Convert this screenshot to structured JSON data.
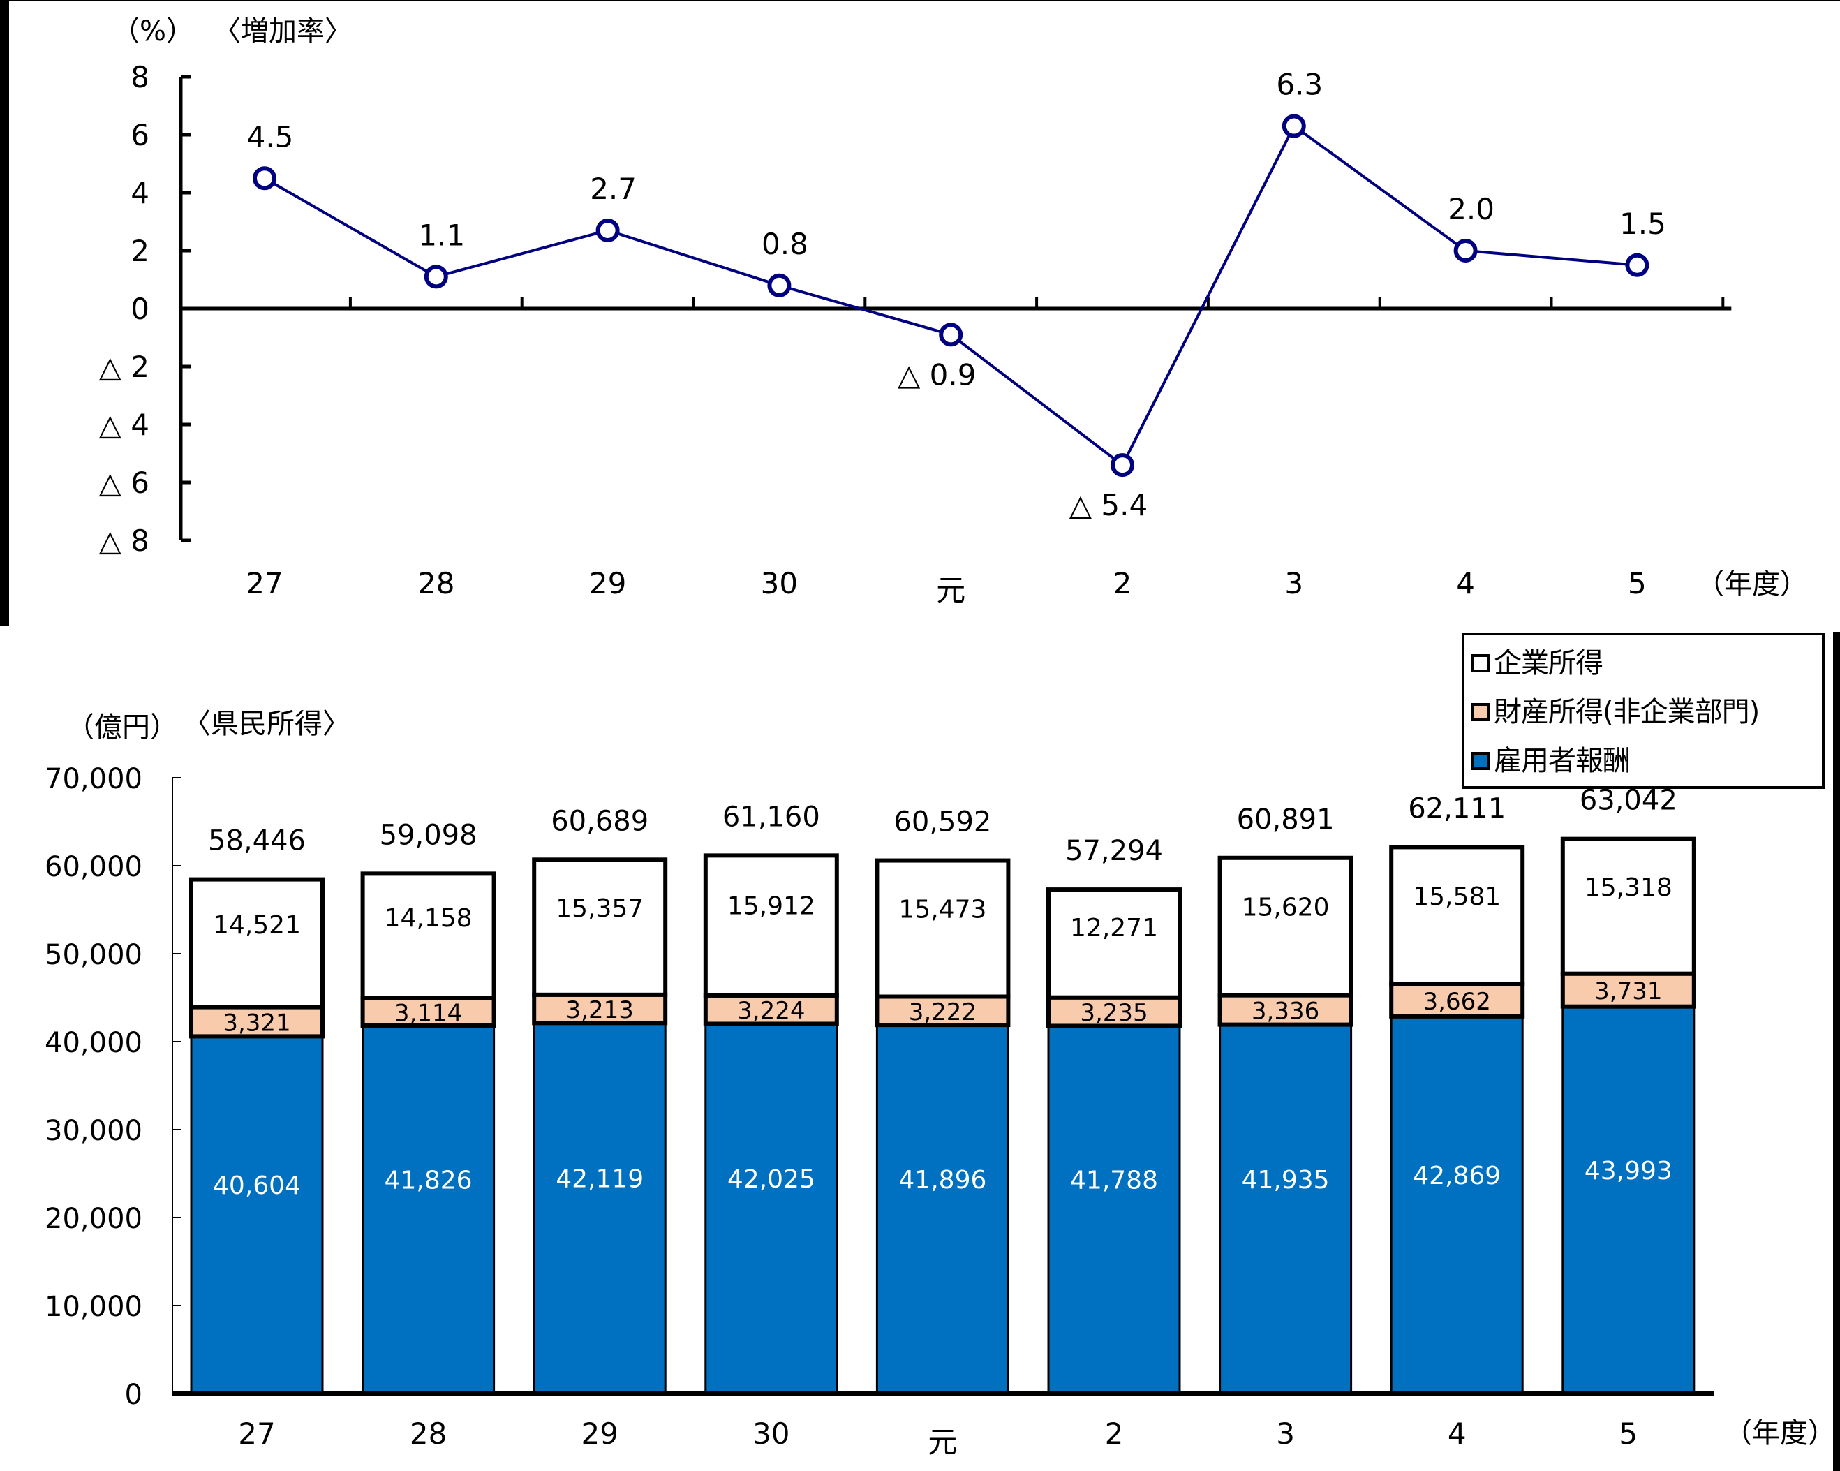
{
  "chart_data": [
    {
      "type": "line",
      "title": "〈増加率〉",
      "ylabel": "（%）",
      "xlabel": "（年度）",
      "categories": [
        "27",
        "28",
        "29",
        "30",
        "元",
        "2",
        "3",
        "4",
        "5"
      ],
      "values": [
        4.5,
        1.1,
        2.7,
        0.8,
        -0.9,
        -5.4,
        6.3,
        2.0,
        1.5
      ],
      "value_labels": [
        "4.5",
        "1.1",
        "2.7",
        "0.8",
        "△ 0.9",
        "△ 5.4",
        "6.3",
        "2.0",
        "1.5"
      ],
      "ylim": [
        -8,
        8
      ],
      "yticks": [
        8,
        6,
        4,
        2,
        0,
        -2,
        -4,
        -6,
        -8
      ],
      "ytick_labels": [
        "8",
        "6",
        "4",
        "2",
        "0",
        "△ 2",
        "△ 4",
        "△ 6",
        "△ 8"
      ],
      "series_color": "#000080",
      "marker": "open-circle",
      "grid": false
    },
    {
      "type": "bar",
      "stacked": true,
      "title": "〈県民所得〉",
      "ylabel": "（億円）",
      "xlabel": "（年度）",
      "categories": [
        "27",
        "28",
        "29",
        "30",
        "元",
        "2",
        "3",
        "4",
        "5"
      ],
      "series": [
        {
          "name": "雇用者報酬",
          "color": "#0070C0",
          "values": [
            40604,
            41826,
            42119,
            42025,
            41896,
            41788,
            41935,
            42869,
            43993
          ]
        },
        {
          "name": "財産所得(非企業部門)",
          "color": "#F8CBAD",
          "values": [
            3321,
            3114,
            3213,
            3224,
            3222,
            3235,
            3336,
            3662,
            3731
          ]
        },
        {
          "name": "企業所得",
          "color": "#FFFFFF",
          "values": [
            14521,
            14158,
            15357,
            15912,
            15473,
            12271,
            15620,
            15581,
            15318
          ]
        }
      ],
      "totals": [
        58446,
        59098,
        60689,
        61160,
        60592,
        57294,
        60891,
        62111,
        63042
      ],
      "ylim": [
        0,
        70000
      ],
      "yticks": [
        0,
        10000,
        20000,
        30000,
        40000,
        50000,
        60000,
        70000
      ],
      "ytick_labels": [
        "0",
        "10,000",
        "20,000",
        "30,000",
        "40,000",
        "50,000",
        "60,000",
        "70,000"
      ],
      "legend_position": "top-right",
      "legend": [
        "企業所得",
        "財産所得(非企業部門)",
        "雇用者報酬"
      ],
      "grid": false
    }
  ],
  "line_chart": {
    "unit_label": "（%）",
    "title": "〈増加率〉",
    "x_unit": "（年度）"
  },
  "bar_chart": {
    "unit_label": "（億円）",
    "title": "〈県民所得〉",
    "x_unit": "（年度）",
    "legend": {
      "items": [
        {
          "label": "企業所得",
          "color": "#FFFFFF"
        },
        {
          "label": "財産所得(非企業部門)",
          "color": "#F8CBAD"
        },
        {
          "label": "雇用者報酬",
          "color": "#0070C0"
        }
      ]
    }
  }
}
